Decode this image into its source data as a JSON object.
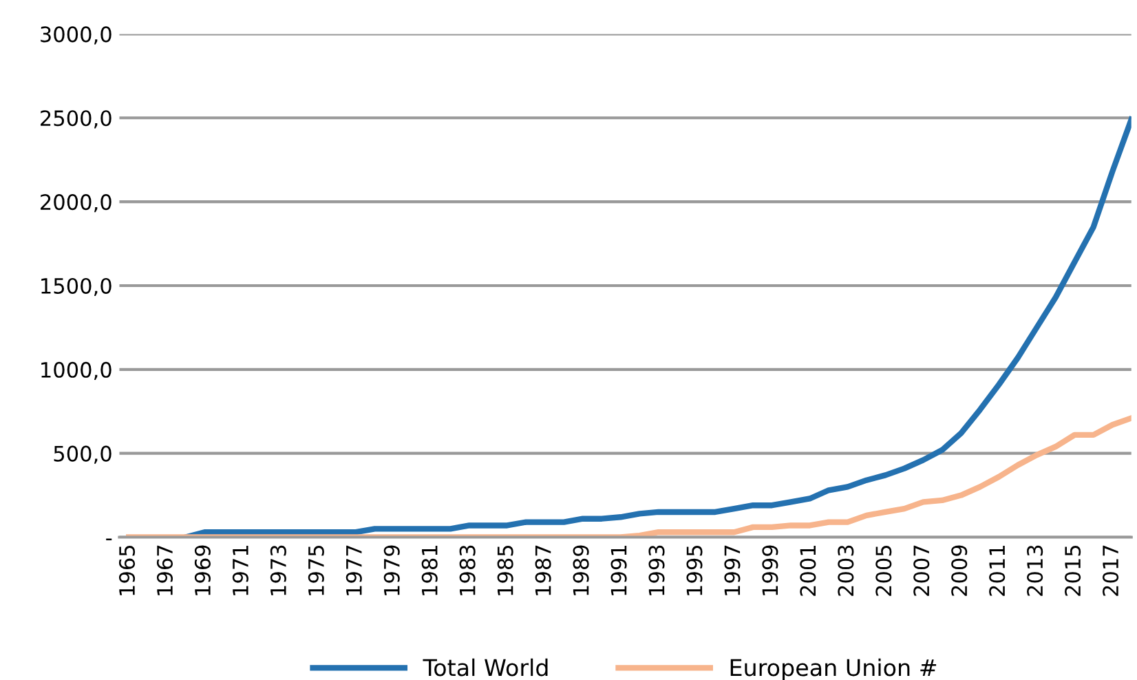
{
  "chart_data": {
    "type": "line",
    "categories": [
      "1965",
      null,
      "1967",
      null,
      "1969",
      null,
      "1971",
      null,
      "1973",
      null,
      "1975",
      null,
      "1977",
      null,
      "1979",
      null,
      "1981",
      null,
      "1983",
      null,
      "1985",
      null,
      "1987",
      null,
      "1989",
      null,
      "1991",
      null,
      "1993",
      null,
      "1995",
      null,
      "1997",
      null,
      "1999",
      null,
      "2001",
      null,
      "2003",
      null,
      "2005",
      null,
      "2007",
      null,
      "2009",
      null,
      "2011",
      null,
      "2013",
      null,
      "2015",
      null,
      "2017",
      null
    ],
    "series": [
      {
        "name": "Total World",
        "color": "#2471b0",
        "values": [
          null,
          null,
          null,
          0,
          30,
          30,
          30,
          30,
          30,
          30,
          30,
          30,
          30,
          50,
          50,
          50,
          50,
          50,
          70,
          70,
          70,
          90,
          90,
          90,
          110,
          110,
          120,
          140,
          150,
          150,
          150,
          150,
          170,
          190,
          190,
          210,
          230,
          280,
          300,
          340,
          370,
          410,
          460,
          520,
          620,
          760,
          910,
          1070,
          1250,
          1430,
          1640,
          1850,
          2180,
          2490
        ]
      },
      {
        "name": "European Union #",
        "color": "#f7b48c",
        "values": [
          0,
          0,
          0,
          0,
          0,
          0,
          0,
          0,
          0,
          0,
          0,
          0,
          0,
          0,
          0,
          0,
          0,
          0,
          0,
          0,
          0,
          0,
          0,
          0,
          0,
          0,
          0,
          10,
          30,
          30,
          30,
          30,
          30,
          60,
          60,
          70,
          70,
          90,
          90,
          130,
          150,
          170,
          210,
          220,
          250,
          300,
          360,
          430,
          490,
          540,
          610,
          610,
          670,
          710
        ]
      }
    ],
    "ylim": [
      0,
      3000
    ],
    "yticks": [
      {
        "value": 0,
        "label": "-"
      },
      {
        "value": 500,
        "label": "500,0"
      },
      {
        "value": 1000,
        "label": "1000,0"
      },
      {
        "value": 1500,
        "label": "1500,0"
      },
      {
        "value": 2000,
        "label": "2000,0"
      },
      {
        "value": 2500,
        "label": "2500,0"
      },
      {
        "value": 3000,
        "label": "3000,0"
      }
    ],
    "grid": "y",
    "legend": "bottom",
    "marker": "none",
    "line_style": "solid"
  }
}
